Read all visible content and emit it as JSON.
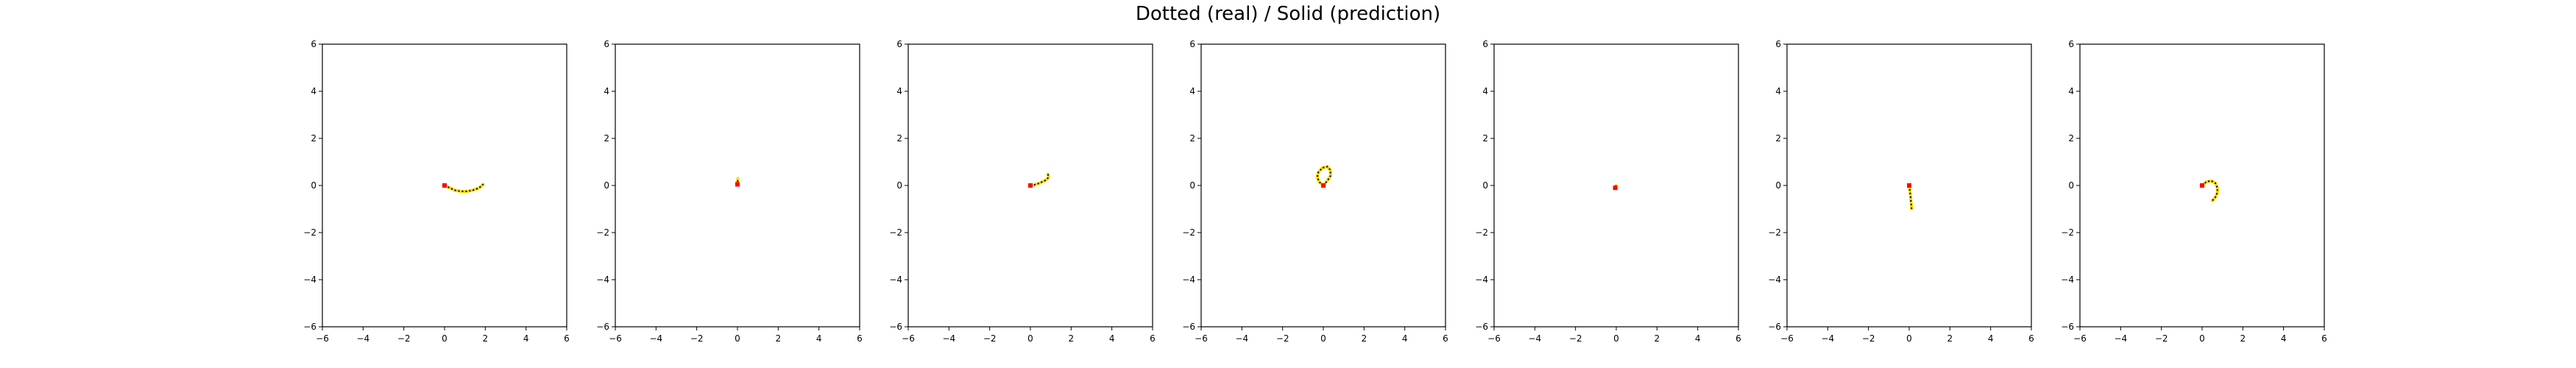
{
  "title": "Dotted (real) / Solid (prediction)",
  "colors": {
    "real": "#000000",
    "prediction": "#ffd700",
    "marker": "#ff0000",
    "axes": "#000000"
  },
  "chart_data": [
    {
      "type": "line",
      "xlim": [
        -6,
        6
      ],
      "ylim": [
        -6,
        6
      ],
      "xticks": [
        -6,
        -4,
        -2,
        0,
        2,
        4,
        6
      ],
      "yticks": [
        -6,
        -4,
        -2,
        0,
        2,
        4,
        6
      ],
      "grid": false,
      "series": [
        {
          "role": "real",
          "x": [
            0.0,
            0.25,
            0.5,
            0.8,
            1.1,
            1.4,
            1.7,
            1.9
          ],
          "y": [
            0.0,
            -0.1,
            -0.2,
            -0.25,
            -0.25,
            -0.2,
            -0.1,
            0.05
          ]
        },
        {
          "role": "prediction",
          "x": [
            0.0,
            0.25,
            0.5,
            0.8,
            1.1,
            1.4,
            1.7,
            1.9
          ],
          "y": [
            0.0,
            -0.1,
            -0.2,
            -0.25,
            -0.25,
            -0.2,
            -0.1,
            0.05
          ]
        }
      ],
      "marker": [
        0,
        0
      ]
    },
    {
      "type": "line",
      "xlim": [
        -6,
        6
      ],
      "ylim": [
        -6,
        6
      ],
      "xticks": [
        -6,
        -4,
        -2,
        0,
        2,
        4,
        6
      ],
      "yticks": [
        -6,
        -4,
        -2,
        0,
        2,
        4,
        6
      ],
      "grid": false,
      "series": [
        {
          "role": "real",
          "x": [
            0.0,
            0.0,
            0.02
          ],
          "y": [
            0.0,
            0.1,
            0.25
          ]
        },
        {
          "role": "prediction",
          "x": [
            0.0,
            0.0,
            0.02
          ],
          "y": [
            0.0,
            0.12,
            0.3
          ]
        }
      ],
      "marker": [
        0,
        0.05
      ]
    },
    {
      "type": "line",
      "xlim": [
        -6,
        6
      ],
      "ylim": [
        -6,
        6
      ],
      "xticks": [
        -6,
        -4,
        -2,
        0,
        2,
        4,
        6
      ],
      "yticks": [
        -6,
        -4,
        -2,
        0,
        2,
        4,
        6
      ],
      "grid": false,
      "series": [
        {
          "role": "real",
          "x": [
            0.0,
            0.2,
            0.45,
            0.7,
            0.85,
            0.9,
            0.85
          ],
          "y": [
            0.0,
            0.03,
            0.1,
            0.2,
            0.3,
            0.4,
            0.48
          ]
        },
        {
          "role": "prediction",
          "x": [
            0.0,
            0.2,
            0.45,
            0.7,
            0.85,
            0.9,
            0.85
          ],
          "y": [
            0.0,
            0.03,
            0.1,
            0.2,
            0.3,
            0.4,
            0.48
          ]
        }
      ],
      "marker": [
        0,
        0
      ]
    },
    {
      "type": "line",
      "xlim": [
        -6,
        6
      ],
      "ylim": [
        -6,
        6
      ],
      "xticks": [
        -6,
        -4,
        -2,
        0,
        2,
        4,
        6
      ],
      "yticks": [
        -6,
        -4,
        -2,
        0,
        2,
        4,
        6
      ],
      "grid": false,
      "series": [
        {
          "role": "real",
          "x": [
            0.0,
            -0.2,
            -0.3,
            -0.25,
            -0.05,
            0.2,
            0.35,
            0.35,
            0.2,
            0.05
          ],
          "y": [
            0.0,
            0.15,
            0.35,
            0.55,
            0.75,
            0.8,
            0.65,
            0.4,
            0.2,
            0.05
          ]
        },
        {
          "role": "prediction",
          "x": [
            0.0,
            -0.2,
            -0.3,
            -0.25,
            -0.05,
            0.2,
            0.35,
            0.35,
            0.2,
            0.05
          ],
          "y": [
            0.0,
            0.15,
            0.35,
            0.55,
            0.75,
            0.8,
            0.65,
            0.4,
            0.2,
            0.05
          ]
        }
      ],
      "marker": [
        0,
        0
      ]
    },
    {
      "type": "line",
      "xlim": [
        -6,
        6
      ],
      "ylim": [
        -6,
        6
      ],
      "xticks": [
        -6,
        -4,
        -2,
        0,
        2,
        4,
        6
      ],
      "yticks": [
        -6,
        -4,
        -2,
        0,
        2,
        4,
        6
      ],
      "grid": false,
      "series": [
        {
          "role": "real",
          "x": [
            0.0,
            -0.05,
            -0.1
          ],
          "y": [
            0.0,
            -0.05,
            -0.12
          ]
        },
        {
          "role": "prediction",
          "x": [
            0.0,
            -0.05,
            -0.1
          ],
          "y": [
            0.0,
            -0.05,
            -0.12
          ]
        }
      ],
      "marker": [
        -0.05,
        -0.1
      ]
    },
    {
      "type": "line",
      "xlim": [
        -6,
        6
      ],
      "ylim": [
        -6,
        6
      ],
      "xticks": [
        -6,
        -4,
        -2,
        0,
        2,
        4,
        6
      ],
      "yticks": [
        -6,
        -4,
        -2,
        0,
        2,
        4,
        6
      ],
      "grid": false,
      "series": [
        {
          "role": "real",
          "x": [
            0.0,
            0.03,
            0.06,
            0.08,
            0.1,
            0.12
          ],
          "y": [
            0.0,
            -0.2,
            -0.4,
            -0.6,
            -0.8,
            -1.0
          ]
        },
        {
          "role": "prediction",
          "x": [
            0.0,
            0.03,
            0.06,
            0.08,
            0.1,
            0.12
          ],
          "y": [
            0.0,
            -0.2,
            -0.4,
            -0.6,
            -0.8,
            -1.0
          ]
        }
      ],
      "marker": [
        0,
        0
      ]
    },
    {
      "type": "line",
      "xlim": [
        -6,
        6
      ],
      "ylim": [
        -6,
        6
      ],
      "xticks": [
        -6,
        -4,
        -2,
        0,
        2,
        4,
        6
      ],
      "yticks": [
        -6,
        -4,
        -2,
        0,
        2,
        4,
        6
      ],
      "grid": false,
      "series": [
        {
          "role": "real",
          "x": [
            0.0,
            0.2,
            0.45,
            0.65,
            0.75,
            0.75,
            0.65,
            0.5
          ],
          "y": [
            0.0,
            0.15,
            0.2,
            0.1,
            -0.1,
            -0.3,
            -0.5,
            -0.65
          ]
        },
        {
          "role": "prediction",
          "x": [
            0.0,
            0.2,
            0.45,
            0.65,
            0.75,
            0.75,
            0.65,
            0.5
          ],
          "y": [
            0.0,
            0.15,
            0.2,
            0.1,
            -0.1,
            -0.3,
            -0.5,
            -0.65
          ]
        }
      ],
      "marker": [
        0,
        0
      ]
    }
  ]
}
